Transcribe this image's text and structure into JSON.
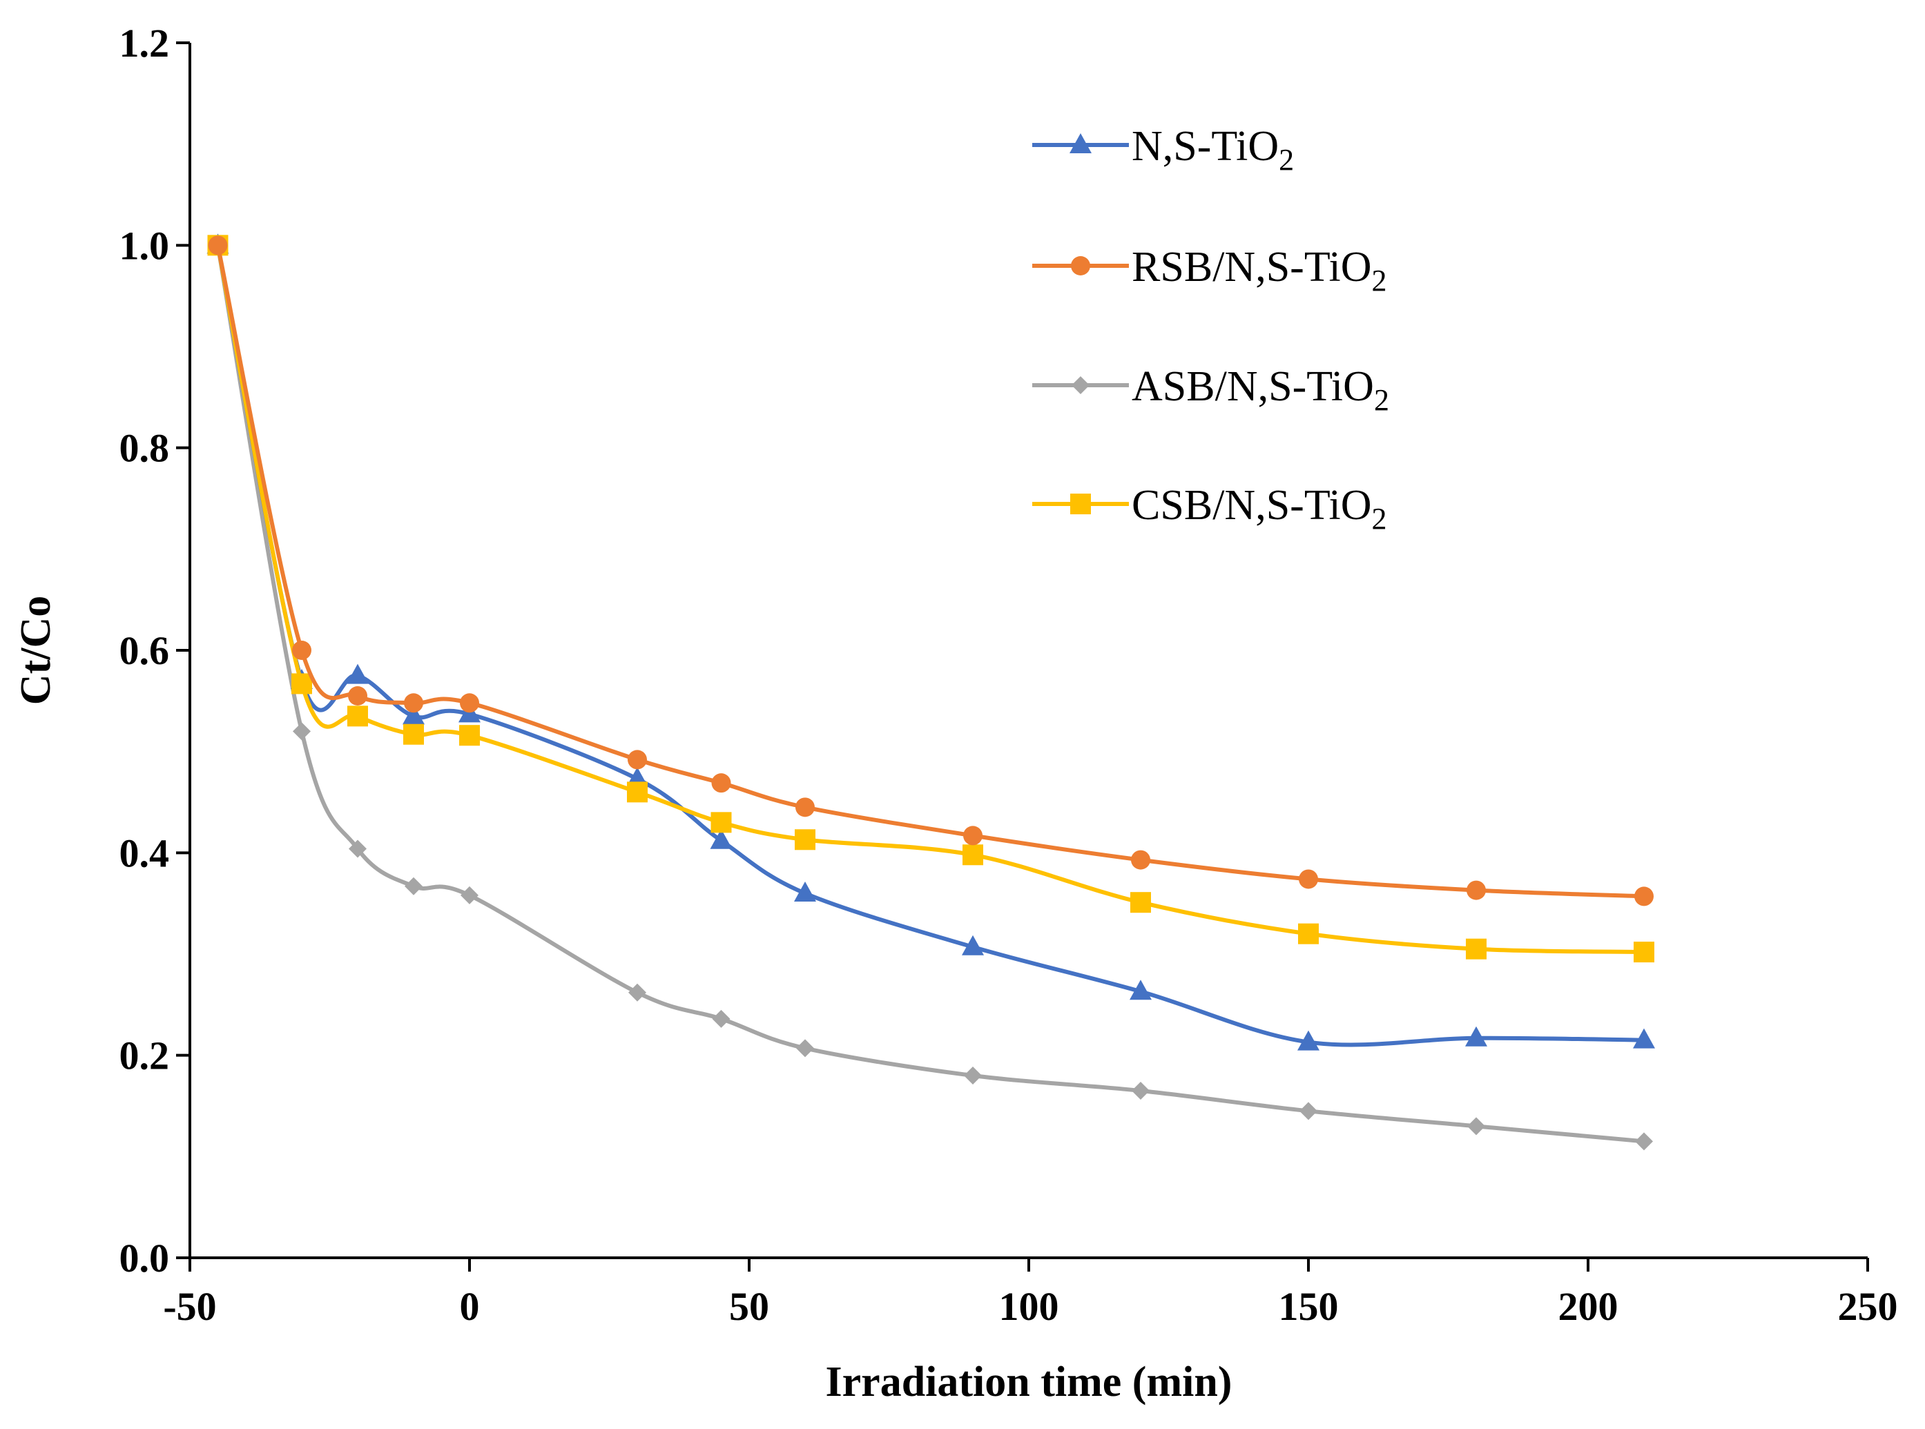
{
  "chart_data": {
    "type": "line",
    "title": "",
    "xlabel": "Irradiation time (min)",
    "ylabel": "Ct/Co",
    "xlim": [
      -50,
      250
    ],
    "ylim": [
      0,
      1.2
    ],
    "xticks": [
      -50,
      0,
      50,
      100,
      150,
      200,
      250
    ],
    "yticks": [
      0.0,
      0.2,
      0.4,
      0.6,
      0.8,
      1.0,
      1.2
    ],
    "xtick_labels": [
      "-50",
      "0",
      "50",
      "100",
      "150",
      "200",
      "250"
    ],
    "ytick_labels": [
      "0.0",
      "0.2",
      "0.4",
      "0.6",
      "0.8",
      "1.0",
      "1.2"
    ],
    "grid": false,
    "legend_position": "top-right",
    "x": [
      -45,
      -30,
      -20,
      -10,
      0,
      30,
      45,
      60,
      90,
      120,
      150,
      180,
      210
    ],
    "series": [
      {
        "name": "N,S-TiO",
        "subscript": "2",
        "color": "#4472C4",
        "marker": "triangle",
        "values": [
          1.0,
          0.57,
          0.575,
          0.535,
          0.537,
          0.473,
          0.412,
          0.36,
          0.307,
          0.263,
          0.213,
          0.217,
          0.215
        ]
      },
      {
        "name": "RSB/N,S-TiO",
        "subscript": "2",
        "color": "#ED7D31",
        "marker": "circle",
        "values": [
          1.0,
          0.6,
          0.555,
          0.548,
          0.548,
          0.492,
          0.469,
          0.445,
          0.417,
          0.393,
          0.374,
          0.363,
          0.357
        ]
      },
      {
        "name": "ASB/N,S-TiO",
        "subscript": "2",
        "color": "#A5A5A5",
        "marker": "diamond",
        "values": [
          1.0,
          0.52,
          0.404,
          0.367,
          0.358,
          0.262,
          0.236,
          0.207,
          0.18,
          0.165,
          0.145,
          0.13,
          0.115
        ]
      },
      {
        "name": "CSB/N,S-TiO",
        "subscript": "2",
        "color": "#FFC000",
        "marker": "square",
        "values": [
          1.0,
          0.567,
          0.535,
          0.517,
          0.516,
          0.46,
          0.43,
          0.413,
          0.398,
          0.351,
          0.32,
          0.305,
          0.302
        ]
      }
    ]
  }
}
